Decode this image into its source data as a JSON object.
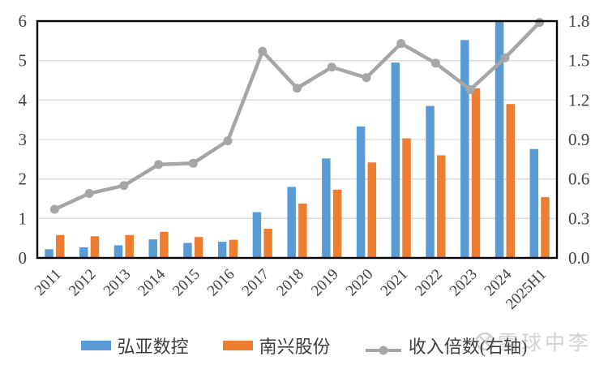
{
  "chart_data": {
    "type": "bar",
    "title": "",
    "categories": [
      "2011",
      "2012",
      "2013",
      "2014",
      "2015",
      "2016",
      "2017",
      "2018",
      "2019",
      "2020",
      "2021",
      "2022",
      "2023",
      "2024",
      "2025H1"
    ],
    "series": [
      {
        "name": "弘亚数控",
        "type": "bar",
        "axis": "left",
        "color": "#5B9BD5",
        "values": [
          0.22,
          0.27,
          0.32,
          0.47,
          0.38,
          0.41,
          1.16,
          1.8,
          2.52,
          3.33,
          4.95,
          3.85,
          5.52,
          5.98,
          2.76
        ]
      },
      {
        "name": "南兴股份",
        "type": "bar",
        "axis": "left",
        "color": "#ED7D31",
        "values": [
          0.58,
          0.55,
          0.58,
          0.66,
          0.53,
          0.46,
          0.74,
          1.38,
          1.73,
          2.42,
          3.03,
          2.6,
          4.3,
          3.9,
          1.54
        ]
      },
      {
        "name": "收入倍数(右轴)",
        "type": "line",
        "axis": "right",
        "color": "#A6A6A6",
        "values": [
          0.37,
          0.49,
          0.55,
          0.71,
          0.72,
          0.89,
          1.57,
          1.29,
          1.45,
          1.37,
          1.63,
          1.48,
          1.28,
          1.52,
          1.79
        ]
      }
    ],
    "left_axis": {
      "min": 0,
      "max": 6,
      "tick_step": 1,
      "tick_labels": [
        "0",
        "1",
        "2",
        "3",
        "4",
        "5",
        "6"
      ]
    },
    "right_axis": {
      "min": 0,
      "max": 1.8,
      "tick_step": 0.3,
      "tick_labels": [
        "0.0",
        "0.3",
        "0.6",
        "0.9",
        "1.2",
        "1.5",
        "1.8"
      ]
    },
    "grid": true,
    "legend_position": "bottom",
    "colors": {
      "grid": "#D9D9D9",
      "border": "#000000",
      "tick_text": "#404040"
    }
  },
  "watermark": {
    "text": "雪球中李",
    "color": "#c8c8c8"
  }
}
